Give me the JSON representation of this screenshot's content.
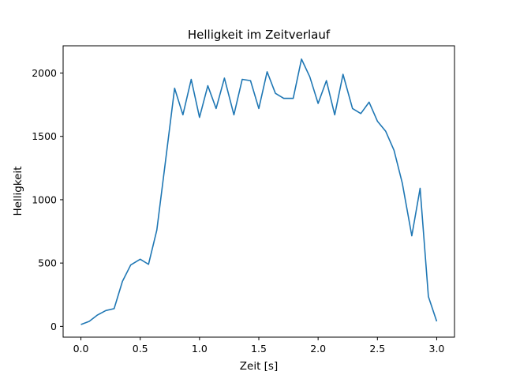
{
  "chart_data": {
    "type": "line",
    "title": "Helligkeit im Zeitverlauf",
    "xlabel": "Zeit [s]",
    "ylabel": "Helligkeit",
    "xlim": [
      -0.15,
      3.15
    ],
    "ylim": [
      -85,
      2215
    ],
    "grid": false,
    "legend": false,
    "color": "#1f77b4",
    "x_ticks": [
      0.0,
      0.5,
      1.0,
      1.5,
      2.0,
      2.5,
      3.0
    ],
    "x_tick_labels": [
      "0.0",
      "0.5",
      "1.0",
      "1.5",
      "2.0",
      "2.5",
      "3.0"
    ],
    "y_ticks": [
      0,
      500,
      1000,
      1500,
      2000
    ],
    "y_tick_labels": [
      "0",
      "500",
      "1000",
      "1500",
      "2000"
    ],
    "series": [
      {
        "x": [
          0.0,
          0.07,
          0.14,
          0.21,
          0.28,
          0.35,
          0.42,
          0.5,
          0.57,
          0.64,
          0.71,
          0.79,
          0.86,
          0.93,
          1.0,
          1.07,
          1.14,
          1.21,
          1.29,
          1.36,
          1.43,
          1.5,
          1.57,
          1.64,
          1.71,
          1.79,
          1.86,
          1.93,
          2.0,
          2.07,
          2.14,
          2.21,
          2.29,
          2.36,
          2.43,
          2.5,
          2.57,
          2.64,
          2.71,
          2.79,
          2.86,
          2.93,
          3.0
        ],
        "y": [
          15,
          40,
          90,
          125,
          140,
          355,
          485,
          530,
          490,
          760,
          1280,
          1880,
          1670,
          1950,
          1650,
          1900,
          1720,
          1960,
          1670,
          1950,
          1940,
          1720,
          2010,
          1840,
          1800,
          1800,
          2110,
          1970,
          1760,
          1940,
          1670,
          1990,
          1720,
          1680,
          1770,
          1620,
          1540,
          1390,
          1130,
          715,
          1090,
          235,
          40
        ]
      }
    ]
  }
}
